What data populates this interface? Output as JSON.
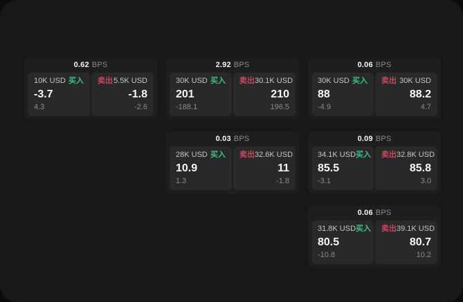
{
  "labels": {
    "bps": "BPS",
    "buy": "买入",
    "sell": "卖出"
  },
  "colors": {
    "buy": "#3fbf83",
    "sell": "#c5485e",
    "card_bg": "#1e1e1f",
    "tile_bg": "#29292a",
    "window_bg": "#181818"
  },
  "cards": [
    {
      "bps": "0.62",
      "buy": {
        "amount": "10K USD",
        "price": "-3.7",
        "delta": "4.3"
      },
      "sell": {
        "amount": "5.5K USD",
        "price": "-1.8",
        "delta": "-2.6"
      }
    },
    {
      "bps": "2.92",
      "buy": {
        "amount": "30K USD",
        "price": "201",
        "delta": "-188.1"
      },
      "sell": {
        "amount": "30.1K USD",
        "price": "210",
        "delta": "196.5"
      }
    },
    {
      "bps": "0.06",
      "buy": {
        "amount": "30K USD",
        "price": "88",
        "delta": "-4.9"
      },
      "sell": {
        "amount": "30K USD",
        "price": "88.2",
        "delta": "4.7"
      }
    },
    {
      "bps": "0.03",
      "buy": {
        "amount": "28K USD",
        "price": "10.9",
        "delta": "1.3"
      },
      "sell": {
        "amount": "32.6K USD",
        "price": "11",
        "delta": "-1.8"
      }
    },
    {
      "bps": "0.09",
      "buy": {
        "amount": "34.1K USD",
        "price": "85.5",
        "delta": "-3.1"
      },
      "sell": {
        "amount": "32.8K USD",
        "price": "85.8",
        "delta": "3.0"
      }
    },
    {
      "bps": "0.06",
      "buy": {
        "amount": "31.8K USD",
        "price": "80.5",
        "delta": "-10.8"
      },
      "sell": {
        "amount": "39.1K USD",
        "price": "80.7",
        "delta": "10.2"
      }
    }
  ]
}
